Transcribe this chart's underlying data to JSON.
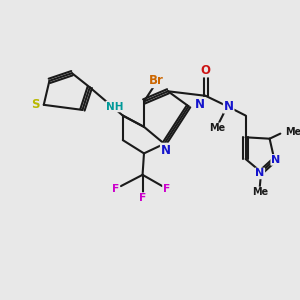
{
  "bg_color": "#e8e8e8",
  "bond_color": "#1a1a1a",
  "bond_width": 1.5,
  "colors": {
    "S": "#b8b800",
    "N": "#1414cc",
    "NH": "#009999",
    "O": "#cc1414",
    "Br": "#cc6600",
    "F": "#cc00cc",
    "C": "#1a1a1a",
    "Me": "#1a1a1a"
  },
  "fs": 8.5,
  "fss": 7.2
}
